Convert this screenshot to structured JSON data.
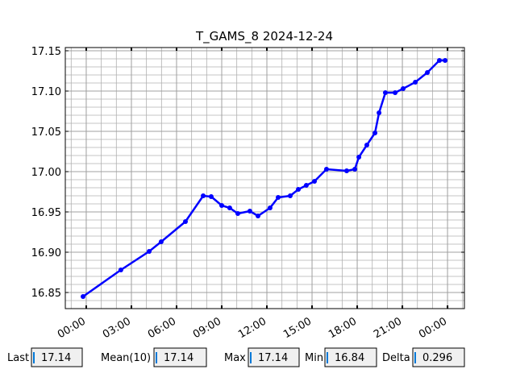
{
  "chart_data": {
    "type": "line",
    "title": "T_GAMS_8 2024-12-24",
    "x": [
      -0.21,
      2.3,
      4.18,
      4.98,
      6.59,
      7.77,
      8.3,
      9.0,
      9.53,
      10.07,
      10.87,
      11.41,
      12.21,
      12.75,
      13.55,
      14.09,
      14.62,
      15.16,
      15.96,
      17.3,
      17.84,
      18.11,
      18.64,
      19.18,
      19.45,
      19.87,
      20.52,
      21.05,
      21.86,
      22.66,
      23.46,
      23.84
    ],
    "series": [
      {
        "name": "T_GAMS_8",
        "color": "#0000ff",
        "values": [
          16.845,
          16.878,
          16.901,
          16.913,
          16.938,
          16.97,
          16.969,
          16.958,
          16.955,
          16.948,
          16.951,
          16.945,
          16.955,
          16.968,
          16.97,
          16.978,
          16.983,
          16.988,
          17.003,
          17.001,
          17.003,
          17.018,
          17.033,
          17.048,
          17.073,
          17.098,
          17.098,
          17.103,
          17.111,
          17.123,
          17.138,
          17.138
        ]
      }
    ],
    "xlim": [
      -1.39,
      25.12
    ],
    "xticks": [
      {
        "value": 0,
        "label": "00:00"
      },
      {
        "value": 3,
        "label": "03:00"
      },
      {
        "value": 6,
        "label": "06:00"
      },
      {
        "value": 9,
        "label": "09:00"
      },
      {
        "value": 12,
        "label": "12:00"
      },
      {
        "value": 15,
        "label": "15:00"
      },
      {
        "value": 18,
        "label": "18:00"
      },
      {
        "value": 21,
        "label": "21:00"
      },
      {
        "value": 24,
        "label": "00:00"
      }
    ],
    "ylim": [
      16.83,
      17.154
    ],
    "yticks": [
      16.85,
      {
        "value": 16.9,
        "label": "16.90"
      },
      16.95,
      {
        "value": 17.0,
        "label": "17.00"
      },
      17.05,
      {
        "value": 17.1,
        "label": "17.10"
      },
      17.15
    ],
    "grid": true,
    "minor_grid": true,
    "x_minor_step": 1,
    "y_minor_step": 0.01
  },
  "stats": [
    {
      "label": "Last",
      "value": 17.14
    },
    {
      "label": "Mean(10)",
      "value": 17.14
    },
    {
      "label": "Max",
      "value": 17.14
    },
    {
      "label": "Min",
      "value": 16.84
    },
    {
      "label": "Delta",
      "value": 0.296
    }
  ]
}
